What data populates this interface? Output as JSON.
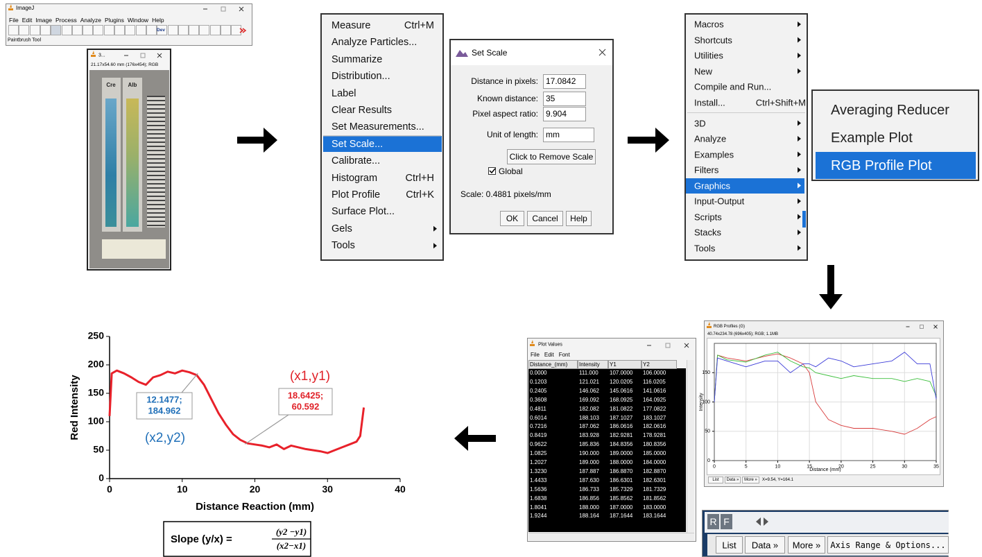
{
  "imagej": {
    "title": "ImageJ",
    "menu": [
      "File",
      "Edit",
      "Image",
      "Process",
      "Analyze",
      "Plugins",
      "Window",
      "Help"
    ],
    "dev_button": "Dev",
    "status": "Paintbrush Tool"
  },
  "image_window": {
    "title": "3...",
    "info": "21.17x54.60 mm (176x454); RGB",
    "labels": [
      "Cre",
      "Alb"
    ]
  },
  "analyze_menu": {
    "items": [
      {
        "label": "Measure",
        "shortcut": "Ctrl+M"
      },
      {
        "label": "Analyze Particles..."
      },
      {
        "label": "Summarize"
      },
      {
        "label": "Distribution..."
      },
      {
        "label": "Label"
      },
      {
        "label": "Clear Results"
      },
      {
        "label": "Set Measurements..."
      },
      {
        "label": "Set Scale...",
        "selected": true,
        "separator_before": true
      },
      {
        "label": "Calibrate..."
      },
      {
        "label": "Histogram",
        "shortcut": "Ctrl+H"
      },
      {
        "label": "Plot Profile",
        "shortcut": "Ctrl+K"
      },
      {
        "label": "Surface Plot..."
      },
      {
        "label": "Gels",
        "submenu": true
      },
      {
        "label": "Tools",
        "submenu": true
      }
    ]
  },
  "set_scale": {
    "title": "Set Scale",
    "fields": [
      {
        "label": "Distance in pixels:",
        "value": "17.0842"
      },
      {
        "label": "Known distance:",
        "value": "35"
      },
      {
        "label": "Pixel aspect ratio:",
        "value": "9.904"
      },
      {
        "label": "Unit of length:",
        "value": "mm"
      }
    ],
    "remove_button": "Click to Remove Scale",
    "global_label": "Global",
    "global_checked": true,
    "scale_text": "Scale: 0.4881 pixels/mm",
    "buttons": [
      "OK",
      "Cancel",
      "Help"
    ]
  },
  "plugins_menu": {
    "items": [
      {
        "label": "Macros",
        "submenu": true
      },
      {
        "label": "Shortcuts",
        "submenu": true
      },
      {
        "label": "Utilities",
        "submenu": true
      },
      {
        "label": "New",
        "submenu": true
      },
      {
        "label": "Compile and Run..."
      },
      {
        "label": "Install...",
        "shortcut": "Ctrl+Shift+M"
      },
      {
        "label": "3D",
        "submenu": true,
        "separator_before": true
      },
      {
        "label": "Analyze",
        "submenu": true
      },
      {
        "label": "Examples",
        "submenu": true
      },
      {
        "label": "Filters",
        "submenu": true
      },
      {
        "label": "Graphics",
        "submenu": true,
        "selected": true
      },
      {
        "label": "Input-Output",
        "submenu": true
      },
      {
        "label": "Scripts",
        "submenu": true
      },
      {
        "label": "Stacks",
        "submenu": true
      },
      {
        "label": "Tools",
        "submenu": true
      }
    ]
  },
  "graphics_submenu": {
    "items": [
      {
        "label": "Averaging Reducer"
      },
      {
        "label": "Example Plot"
      },
      {
        "label": "RGB Profile Plot",
        "selected": true
      }
    ]
  },
  "rgb_window": {
    "title": "RGB Profiles (G)",
    "info": "40.74x234.78  (696x405); RGB; 1.1MB",
    "buttons": [
      "List",
      "Data »",
      "More »"
    ],
    "status": "X=9.54, Y=164.1"
  },
  "zoom_bar": {
    "tabs": [
      "R",
      "F"
    ],
    "buttons": [
      "List",
      "Data »",
      "More »",
      "Axis Range & Options..."
    ]
  },
  "plot_values": {
    "title": "Plot Values",
    "menu": [
      "File",
      "Edit",
      "Font"
    ],
    "columns": [
      "Distance_(mm)",
      "Intensity",
      "Y1",
      "Y2"
    ],
    "rows": [
      [
        "0.0000",
        "111.000",
        "107.0000",
        "106.0000"
      ],
      [
        "0.1203",
        "121.021",
        "120.0205",
        "116.0205"
      ],
      [
        "0.2405",
        "146.062",
        "145.0616",
        "141.0616"
      ],
      [
        "0.3608",
        "169.092",
        "168.0925",
        "164.0925"
      ],
      [
        "0.4811",
        "182.082",
        "181.0822",
        "177.0822"
      ],
      [
        "0.6014",
        "188.103",
        "187.1027",
        "183.1027"
      ],
      [
        "0.7216",
        "187.062",
        "186.0616",
        "182.0616"
      ],
      [
        "0.8419",
        "183.928",
        "182.9281",
        "178.9281"
      ],
      [
        "0.9622",
        "185.836",
        "184.8356",
        "180.8356"
      ],
      [
        "1.0825",
        "190.000",
        "189.0000",
        "185.0000"
      ],
      [
        "1.2027",
        "189.000",
        "188.0000",
        "184.0000"
      ],
      [
        "1.3230",
        "187.887",
        "186.8870",
        "182.8870"
      ],
      [
        "1.4433",
        "187.630",
        "186.6301",
        "182.6301"
      ],
      [
        "1.5636",
        "186.733",
        "185.7329",
        "181.7329"
      ],
      [
        "1.6838",
        "186.856",
        "185.8562",
        "181.8562"
      ],
      [
        "1.8041",
        "188.000",
        "187.0000",
        "183.0000"
      ],
      [
        "1.9244",
        "188.164",
        "187.1644",
        "183.1644"
      ]
    ]
  },
  "chart_data": [
    {
      "type": "line",
      "y_label": "Red Intensity",
      "x_label": "Distance Reaction (mm)",
      "x": [
        0,
        0.3,
        1,
        2,
        3,
        4,
        5,
        6,
        7,
        8,
        9,
        10,
        11,
        12,
        13,
        14,
        15,
        16,
        17,
        18,
        19,
        20,
        21,
        22,
        23,
        24,
        25,
        26,
        27,
        28,
        29,
        30,
        31,
        32,
        33,
        34,
        34.5,
        35
      ],
      "series": [
        {
          "color": "#e8212a",
          "values": [
            110,
            185,
            190,
            185,
            178,
            170,
            165,
            178,
            182,
            188,
            185,
            190,
            187,
            182,
            165,
            140,
            115,
            95,
            78,
            68,
            62,
            60,
            58,
            55,
            60,
            52,
            58,
            55,
            52,
            50,
            48,
            45,
            50,
            55,
            60,
            65,
            75,
            125
          ]
        }
      ],
      "xlim": [
        0,
        40
      ],
      "ylim": [
        0,
        250
      ],
      "xticks": [
        0,
        10,
        20,
        30,
        40
      ],
      "yticks": [
        0,
        50,
        100,
        150,
        200,
        250
      ],
      "annotations": [
        {
          "x": 12.1477,
          "y": 184.962,
          "box_lines": [
            "12.1477;",
            "184.962"
          ],
          "point_label": "(x2,y2)",
          "color": "#1f6fb8"
        },
        {
          "x": 18.6425,
          "y": 60.592,
          "box_lines": [
            "18.6425;",
            "60.592"
          ],
          "point_label": "(x1,y1)",
          "color": "#e02128"
        }
      ],
      "slope": {
        "lhs": "Slope (y/x) =",
        "numerator": "(y2 −y1)",
        "denominator": "(x2−x1)"
      }
    },
    {
      "type": "line",
      "x_label": "Distance (mm)",
      "y_label": "Intensity",
      "x": [
        0,
        0.5,
        2,
        5,
        8,
        10,
        12,
        14,
        15,
        16,
        18,
        20,
        22,
        25,
        28,
        30,
        32,
        34,
        35
      ],
      "series": [
        {
          "color": "#d83a3a",
          "values": [
            100,
            180,
            175,
            170,
            178,
            182,
            175,
            165,
            150,
            100,
            70,
            60,
            55,
            55,
            50,
            45,
            55,
            70,
            75
          ]
        },
        {
          "color": "#3cbf3c",
          "values": [
            100,
            180,
            172,
            168,
            180,
            185,
            170,
            160,
            158,
            150,
            145,
            140,
            145,
            140,
            140,
            135,
            140,
            135,
            110
          ]
        },
        {
          "color": "#3a3ad8",
          "values": [
            100,
            175,
            170,
            160,
            170,
            170,
            150,
            165,
            165,
            160,
            175,
            170,
            160,
            165,
            170,
            185,
            165,
            165,
            105
          ]
        }
      ],
      "xlim": [
        0,
        35
      ],
      "ylim": [
        0,
        200
      ],
      "xticks": [
        0,
        5,
        10,
        15,
        20,
        25,
        30,
        35
      ],
      "yticks": [
        0,
        50,
        100,
        150
      ]
    }
  ]
}
